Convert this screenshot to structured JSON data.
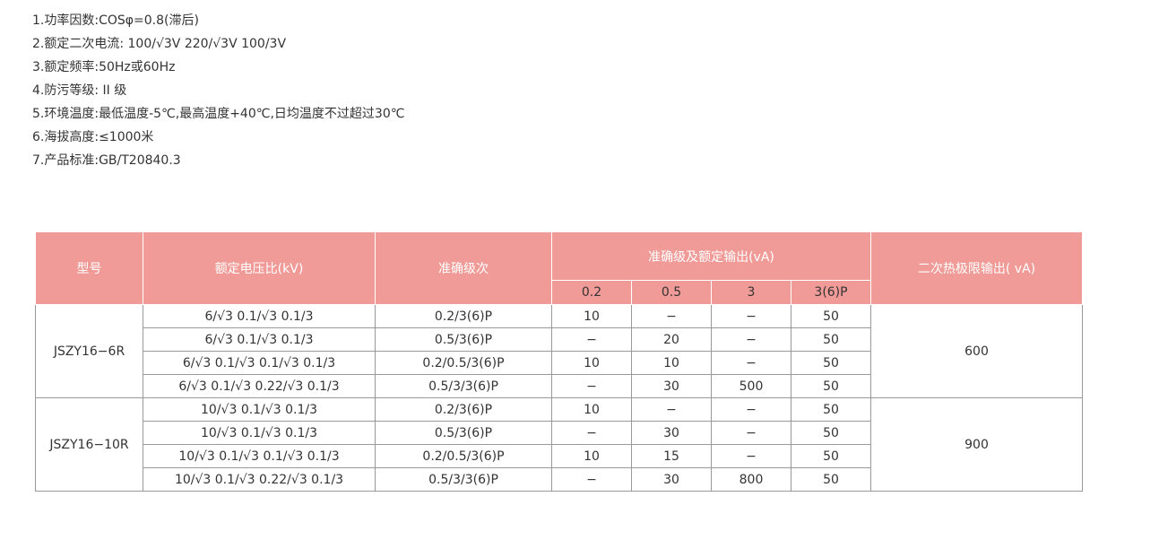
{
  "specs": [
    "1.功率因数:COSφ=0.8(滞后)",
    "2.额定二次电流: 100/√3V 220/√3V 100/3V",
    "3.额定频率:50Hz或60Hz",
    "4.防污等级: II 级",
    "5.环境温度:最低温度-5℃,最高温度+40℃,日均温度不过超过30℃",
    "6.海拔高度:≤1000米",
    "7.产品标准:GB/T20840.3"
  ],
  "table": {
    "headers": {
      "model": "型号",
      "ratio": "额定电压比(kV)",
      "accuracy": "准确级次",
      "output": "准确级及额定输出(vA)",
      "sub": [
        "0.2",
        "0.5",
        "3",
        "3(6)P"
      ],
      "thermal": "二次热极限输出( vA)"
    },
    "groups": [
      {
        "model": "JSZY16−6R",
        "thermal": "600",
        "rows": [
          [
            "6/√3   0.1/√3   0.1/3",
            "0.2/3(6)P",
            "10",
            "−",
            "−",
            "50"
          ],
          [
            "6/√3   0.1/√3   0.1/3",
            "0.5/3(6)P",
            "−",
            "20",
            "−",
            "50"
          ],
          [
            "6/√3   0.1/√3   0.1/√3  0.1/3",
            "0.2/0.5/3(6)P",
            "10",
            "10",
            "−",
            "50"
          ],
          [
            "6/√3 0.1/√3 0.22/√3  0.1/3",
            "0.5/3/3(6)P",
            "−",
            "30",
            "500",
            "50"
          ]
        ]
      },
      {
        "model": "JSZY16−10R",
        "thermal": "900",
        "rows": [
          [
            "10/√3 0.1/√3 0.1/3",
            "0.2/3(6)P",
            "10",
            "−",
            "−",
            "50"
          ],
          [
            "10/√3  0.1/√3  0.1/3",
            "0.5/3(6)P",
            "−",
            "30",
            "−",
            "50"
          ],
          [
            "10/√3 0.1/√3 0.1/√3 0.1/3",
            "0.2/0.5/3(6)P",
            "10",
            "15",
            "−",
            "50"
          ],
          [
            "10/√3  0.1/√3  0.22/√3 0.1/3",
            "0.5/3/3(6)P",
            "−",
            "30",
            "800",
            "50"
          ]
        ]
      }
    ]
  },
  "colors": {
    "header": "#f09b97"
  }
}
